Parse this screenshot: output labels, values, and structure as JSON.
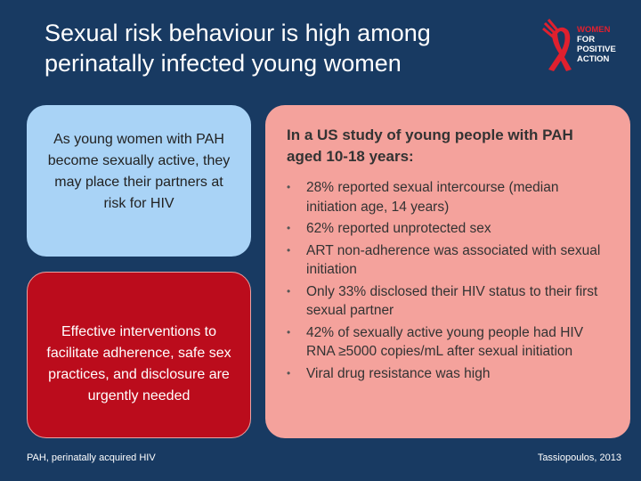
{
  "header": {
    "title": "Sexual risk behaviour is high among perinatally infected young women"
  },
  "logo": {
    "lines": [
      "WOMEN",
      "FOR",
      "POSITIVE",
      "ACTION"
    ]
  },
  "left_top_box": {
    "text": "As young women with PAH become sexually active, they may place their partners at risk for HIV"
  },
  "left_bottom_box": {
    "text": "Effective interventions to facilitate adherence, safe sex practices, and disclosure are urgently needed"
  },
  "right_box": {
    "heading": "In a US study of young people with PAH aged 10-18 years:",
    "bullets": [
      "28% reported sexual intercourse (median initiation age, 14 years)",
      "62% reported unprotected sex",
      "ART non-adherence was associated with sexual initiation",
      "Only 33% disclosed their HIV status to their first sexual partner",
      "42% of sexually active young people had HIV RNA ≥5000 copies/mL after sexual initiation",
      "Viral drug resistance was high"
    ]
  },
  "footer": {
    "note": "PAH, perinatally acquired HIV",
    "citation": "Tassiopoulos, 2013"
  }
}
